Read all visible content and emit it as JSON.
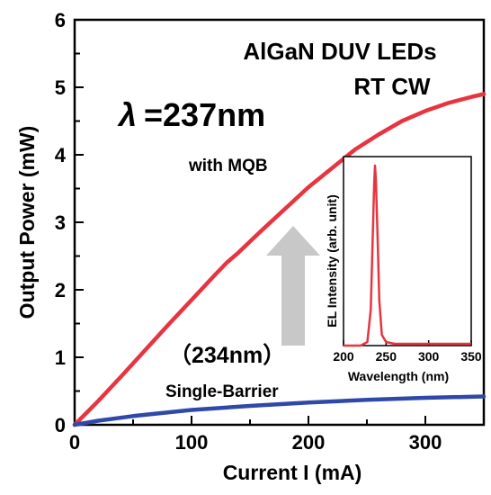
{
  "chart_data": [
    {
      "type": "line",
      "title": "AlGaN DUV LEDs",
      "subtitle": "RT CW",
      "xlabel": "Current I  (mA)",
      "ylabel": "Output Power (mW)",
      "xlim": [
        0,
        350
      ],
      "ylim": [
        0,
        6
      ],
      "x_ticks": [
        "0",
        "100",
        "200",
        "300"
      ],
      "y_ticks": [
        "0",
        "1",
        "2",
        "3",
        "4",
        "5",
        "6"
      ],
      "grid": false,
      "series": [
        {
          "name": "with MQB",
          "color": "#e8343f",
          "x": [
            0,
            20,
            40,
            60,
            80,
            100,
            120,
            130,
            140,
            160,
            180,
            200,
            220,
            240,
            260,
            280,
            300,
            320,
            340,
            350
          ],
          "y": [
            0,
            0.35,
            0.72,
            1.1,
            1.48,
            1.85,
            2.22,
            2.4,
            2.55,
            2.88,
            3.2,
            3.52,
            3.8,
            4.08,
            4.3,
            4.5,
            4.65,
            4.77,
            4.86,
            4.9
          ]
        },
        {
          "name": "Single-Barrier",
          "color": "#2f49a8",
          "x": [
            0,
            20,
            50,
            100,
            150,
            200,
            250,
            300,
            350
          ],
          "y": [
            0,
            0.06,
            0.13,
            0.22,
            0.28,
            0.33,
            0.37,
            0.4,
            0.42
          ]
        }
      ],
      "annotations": {
        "lambda": "λ",
        "wavelength_main": "=237nm",
        "wavelength_alt": "（234nm）",
        "mqb_label": "with MQB",
        "single_barrier_label": "Single-Barrier"
      },
      "arrow": {
        "direction": "up",
        "color": "#c8c8c8"
      }
    },
    {
      "type": "line",
      "title": "",
      "xlabel": "Wavelength (nm)",
      "ylabel": "EL Intensity (arb. unit)",
      "xlim": [
        200,
        350
      ],
      "ylim": [
        0,
        1.05
      ],
      "x_ticks": [
        "200",
        "250",
        "300",
        "350"
      ],
      "grid": false,
      "series": [
        {
          "name": "",
          "color": "#e8343f",
          "x": [
            200,
            220,
            228,
            232,
            234,
            236,
            237,
            238,
            240,
            242,
            245,
            250,
            260,
            280,
            300,
            320,
            350
          ],
          "y": [
            0.0,
            0.0,
            0.02,
            0.2,
            0.55,
            0.9,
            1.0,
            0.92,
            0.6,
            0.25,
            0.06,
            0.02,
            0.01,
            0.01,
            0.01,
            0.01,
            0.01
          ]
        }
      ]
    }
  ]
}
